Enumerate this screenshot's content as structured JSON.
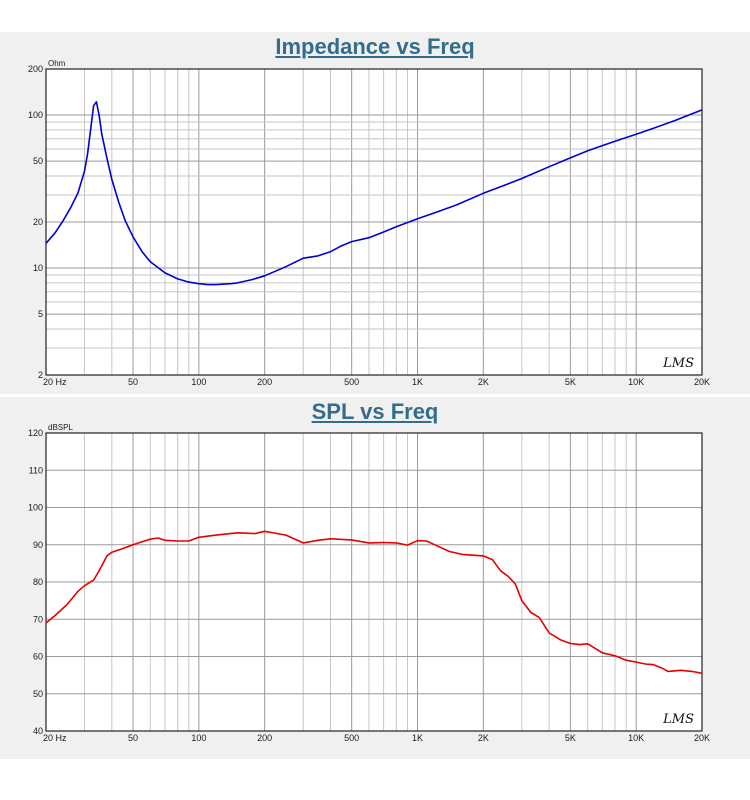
{
  "chart_data": [
    {
      "type": "line",
      "title": "Impedance vs Freq",
      "ylabel": "Ohm",
      "xscale": "log",
      "yscale": "log",
      "xlim": [
        20,
        20000
      ],
      "ylim": [
        2,
        200
      ],
      "grid": true,
      "x_tick_labels": [
        "20  Hz",
        "50",
        "100",
        "200",
        "500",
        "1K",
        "2K",
        "5K",
        "10K",
        "20K"
      ],
      "y_tick_labels": [
        "2",
        "5",
        "10",
        "20",
        "50",
        "100",
        "200"
      ],
      "brand": "LMS",
      "series": [
        {
          "color": "#0000d8",
          "x": [
            20,
            22,
            24,
            26,
            28,
            30,
            31,
            32,
            33,
            34,
            35,
            36,
            38,
            40,
            43,
            46,
            50,
            55,
            60,
            70,
            80,
            90,
            100,
            110,
            120,
            130,
            140,
            150,
            175,
            200,
            250,
            300,
            350,
            400,
            450,
            500,
            600,
            700,
            800,
            1000,
            1200,
            1500,
            2000,
            2500,
            3000,
            4000,
            5000,
            6000,
            8000,
            10000,
            12000,
            15000,
            20000
          ],
          "y": [
            14.5,
            17,
            20.5,
            25,
            31,
            43,
            56,
            80,
            115,
            122,
            100,
            75,
            52,
            38,
            27,
            20.5,
            16,
            12.8,
            11,
            9.3,
            8.5,
            8.1,
            7.9,
            7.8,
            7.8,
            7.85,
            7.9,
            8.0,
            8.4,
            8.9,
            10.2,
            11.6,
            12.0,
            12.8,
            14.0,
            14.9,
            15.8,
            17.2,
            18.6,
            21.0,
            23.0,
            25.8,
            30.8,
            34.8,
            38.5,
            46.0,
            52.5,
            58.5,
            67.5,
            75.0,
            82.0,
            92.0,
            108.0
          ]
        }
      ]
    },
    {
      "type": "line",
      "title": "SPL vs Freq",
      "ylabel": "dBSPL",
      "xscale": "log",
      "xlim": [
        20,
        20000
      ],
      "ylim": [
        40,
        120
      ],
      "grid": true,
      "x_tick_labels": [
        "20  Hz",
        "50",
        "100",
        "200",
        "500",
        "1K",
        "2K",
        "5K",
        "10K",
        "20K"
      ],
      "y_tick_labels": [
        "40",
        "50",
        "60",
        "70",
        "80",
        "90",
        "100",
        "110",
        "120"
      ],
      "brand": "LMS",
      "series": [
        {
          "color": "#e80000",
          "x": [
            20,
            22,
            25,
            28,
            30,
            33,
            35,
            38,
            40,
            45,
            50,
            55,
            60,
            65,
            70,
            80,
            90,
            100,
            120,
            150,
            180,
            200,
            250,
            300,
            350,
            400,
            500,
            600,
            700,
            800,
            900,
            1000,
            1100,
            1200,
            1400,
            1600,
            1800,
            2000,
            2200,
            2400,
            2600,
            2800,
            3000,
            3300,
            3600,
            4000,
            4500,
            5000,
            5500,
            6000,
            7000,
            8000,
            9000,
            10000,
            11000,
            12000,
            13000,
            14000,
            16000,
            18000,
            20000
          ],
          "y": [
            69,
            71,
            74,
            77.5,
            79,
            80.5,
            83,
            87,
            88,
            89,
            90,
            90.8,
            91.5,
            91.8,
            91.2,
            91,
            91,
            92,
            92.6,
            93.2,
            93.0,
            93.6,
            92.6,
            90.5,
            91.2,
            91.6,
            91.3,
            90.5,
            90.6,
            90.5,
            89.9,
            91.1,
            91.0,
            90.0,
            88.2,
            87.4,
            87.2,
            87.0,
            86.0,
            83.0,
            81.5,
            79.5,
            75.0,
            71.8,
            70.5,
            66.3,
            64.5,
            63.5,
            63.2,
            63.4,
            61.0,
            60.2,
            59.0,
            58.5,
            58.0,
            57.8,
            57.0,
            56.0,
            56.3,
            56.0,
            55.5
          ]
        }
      ]
    }
  ]
}
